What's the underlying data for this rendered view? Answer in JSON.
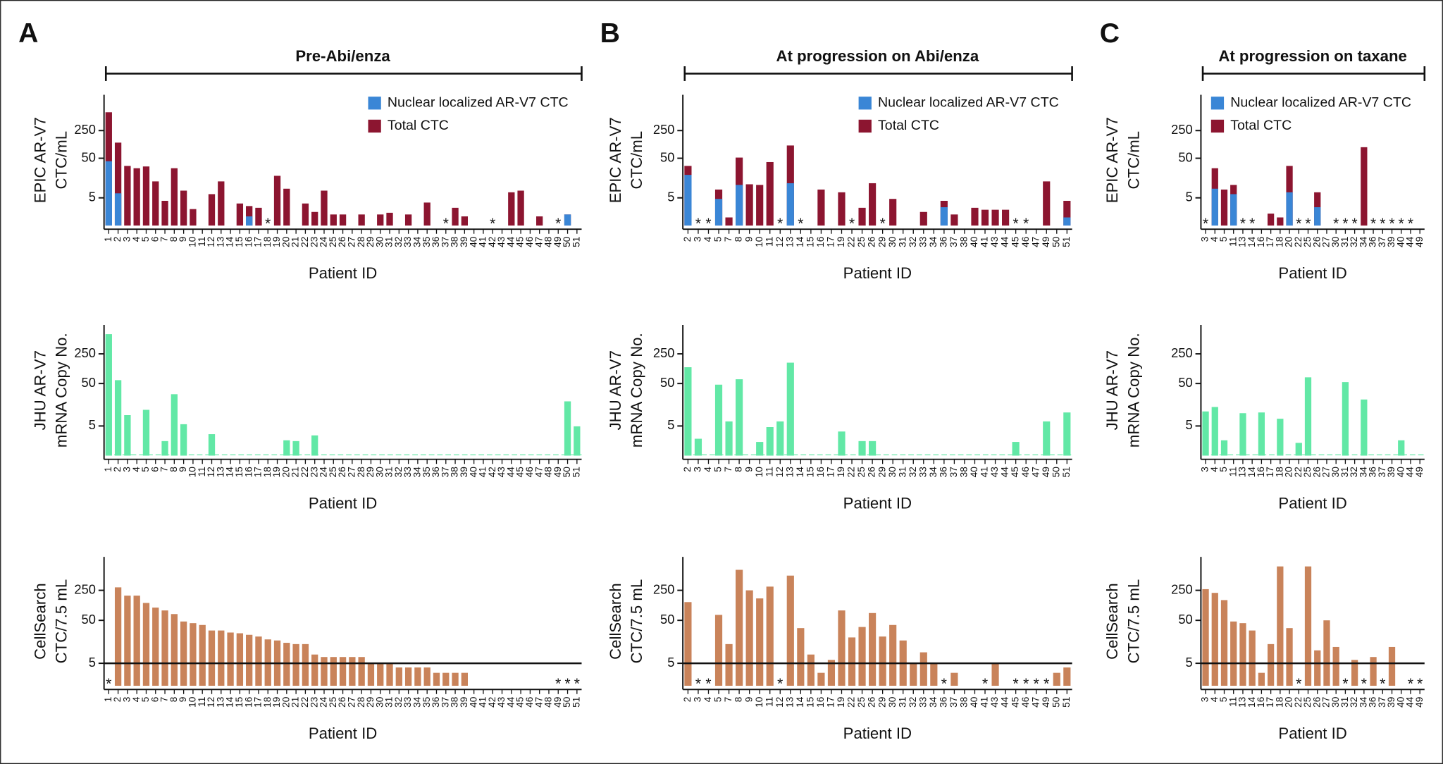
{
  "panels": [
    {
      "letter": "A",
      "title": "Pre-Abi/enza"
    },
    {
      "letter": "B",
      "title": "At progression on Abi/enza"
    },
    {
      "letter": "C",
      "title": "At progression on taxane"
    }
  ],
  "chart_data": [
    {
      "type": "bar",
      "barmode": "overlay",
      "ylabel": [
        "EPIC AR-V7",
        "CTC/mL"
      ],
      "xlabel": "Patient ID",
      "log_scale": true,
      "ylim": [
        1,
        2000
      ],
      "yticks": [
        5,
        50,
        250
      ],
      "legend": "upper right",
      "categories": [
        "1",
        "2",
        "3",
        "4",
        "5",
        "6",
        "7",
        "8",
        "9",
        "10",
        "11",
        "12",
        "13",
        "14",
        "15",
        "16",
        "17",
        "18",
        "19",
        "20",
        "21",
        "22",
        "23",
        "24",
        "25",
        "26",
        "27",
        "28",
        "29",
        "30",
        "31",
        "32",
        "33",
        "34",
        "35",
        "36",
        "37",
        "38",
        "39",
        "40",
        "41",
        "42",
        "43",
        "44",
        "45",
        "46",
        "47",
        "48",
        "49",
        "50",
        "51"
      ],
      "series": [
        {
          "name": "Nuclear localized AR-V7 CTC",
          "color": "#3a86d6",
          "values": [
            42,
            6.5,
            null,
            null,
            null,
            null,
            null,
            null,
            null,
            null,
            null,
            null,
            null,
            null,
            null,
            1.7,
            null,
            null,
            null,
            null,
            null,
            null,
            null,
            null,
            null,
            null,
            null,
            null,
            null,
            null,
            null,
            null,
            null,
            null,
            null,
            null,
            null,
            null,
            null,
            null,
            null,
            null,
            null,
            null,
            null,
            null,
            null,
            null,
            null,
            1.9,
            null
          ]
        },
        {
          "name": "Total CTC",
          "color": "#8c1530",
          "values": [
            725,
            124,
            32,
            28,
            31,
            13,
            4.2,
            28,
            7.6,
            2.6,
            null,
            6.2,
            13,
            null,
            3.6,
            3.1,
            2.8,
            null,
            18,
            8.5,
            null,
            3.6,
            2.2,
            7.6,
            1.9,
            1.9,
            null,
            1.9,
            null,
            1.9,
            2.1,
            null,
            1.9,
            null,
            3.8,
            null,
            null,
            2.8,
            1.7,
            null,
            null,
            null,
            null,
            6.9,
            7.6,
            null,
            1.7,
            null,
            null,
            1.9,
            null
          ]
        }
      ],
      "annotations": [
        {
          "text": "*",
          "x": "18"
        },
        {
          "text": "*",
          "x": "37"
        },
        {
          "text": "*",
          "x": "42"
        },
        {
          "text": "*",
          "x": "49"
        }
      ]
    },
    {
      "type": "bar",
      "ylabel": [
        "JHU AR-V7",
        "mRNA Copy No."
      ],
      "xlabel": "Patient ID",
      "log_scale": true,
      "ylim": [
        1,
        1200
      ],
      "yticks": [
        5,
        50,
        250
      ],
      "baseline_dashes": true,
      "color": "#62e8a6",
      "categories": [
        "1",
        "2",
        "3",
        "4",
        "5",
        "6",
        "7",
        "8",
        "9",
        "10",
        "11",
        "12",
        "13",
        "14",
        "15",
        "16",
        "17",
        "18",
        "19",
        "20",
        "21",
        "22",
        "23",
        "24",
        "25",
        "26",
        "27",
        "28",
        "29",
        "30",
        "31",
        "32",
        "33",
        "34",
        "35",
        "36",
        "37",
        "38",
        "39",
        "40",
        "41",
        "42",
        "43",
        "44",
        "45",
        "46",
        "47",
        "48",
        "49",
        "50",
        "51"
      ],
      "values": [
        728,
        60,
        9,
        null,
        12,
        null,
        2.2,
        28,
        5.5,
        null,
        null,
        3.2,
        null,
        null,
        null,
        null,
        null,
        null,
        null,
        2.3,
        2.2,
        null,
        3.0,
        null,
        null,
        null,
        null,
        null,
        null,
        null,
        null,
        null,
        null,
        null,
        null,
        null,
        null,
        null,
        null,
        null,
        null,
        null,
        null,
        null,
        null,
        null,
        null,
        null,
        null,
        19,
        4.9
      ]
    },
    {
      "type": "bar",
      "ylabel": [
        "CellSearch",
        "CTC/7.5 mL"
      ],
      "xlabel": "Patient ID",
      "log_scale": true,
      "ylim": [
        1.5,
        1500
      ],
      "yticks": [
        5,
        50,
        250
      ],
      "hline": 5,
      "color": "#c9835a",
      "categories": [
        "1",
        "2",
        "3",
        "4",
        "5",
        "6",
        "7",
        "8",
        "9",
        "10",
        "11",
        "12",
        "13",
        "14",
        "15",
        "16",
        "17",
        "18",
        "19",
        "20",
        "21",
        "22",
        "23",
        "24",
        "25",
        "26",
        "27",
        "28",
        "29",
        "30",
        "31",
        "32",
        "33",
        "34",
        "35",
        "36",
        "37",
        "38",
        "39",
        "40",
        "41",
        "42",
        "43",
        "44",
        "45",
        "46",
        "47",
        "48",
        "49",
        "50",
        "51"
      ],
      "values": [
        null,
        293,
        188,
        188,
        127,
        99,
        85,
        70,
        47,
        43,
        39,
        29,
        29,
        26,
        25,
        23,
        21,
        18,
        17,
        15,
        14,
        14,
        8,
        7,
        7,
        7,
        7,
        7,
        5,
        5,
        5,
        4,
        4,
        4,
        4,
        3,
        3,
        3,
        3,
        null,
        null,
        null,
        null,
        null,
        null,
        null,
        null,
        null,
        null,
        null,
        null
      ],
      "annotations": [
        {
          "text": "*",
          "x": "1"
        },
        {
          "text": "*",
          "x": "49"
        },
        {
          "text": "*",
          "x": "50"
        },
        {
          "text": "*",
          "x": "51"
        }
      ]
    },
    {
      "type": "bar",
      "barmode": "overlay",
      "ylabel": [
        "EPIC AR-V7",
        "CTC/mL"
      ],
      "xlabel": "Patient ID",
      "log_scale": true,
      "ylim": [
        1,
        2000
      ],
      "yticks": [
        5,
        50,
        250
      ],
      "legend": "upper right",
      "categories": [
        "2",
        "3",
        "4",
        "5",
        "7",
        "8",
        "9",
        "10",
        "11",
        "12",
        "13",
        "14",
        "15",
        "16",
        "17",
        "19",
        "22",
        "25",
        "26",
        "29",
        "30",
        "31",
        "32",
        "33",
        "34",
        "36",
        "37",
        "38",
        "40",
        "41",
        "43",
        "44",
        "45",
        "46",
        "47",
        "49",
        "50",
        "51"
      ],
      "series": [
        {
          "name": "Nuclear localized AR-V7 CTC",
          "color": "#3a86d6",
          "values": [
            19,
            null,
            null,
            4.7,
            null,
            10.6,
            null,
            null,
            null,
            null,
            11.7,
            null,
            null,
            null,
            null,
            null,
            null,
            null,
            null,
            null,
            null,
            null,
            null,
            null,
            null,
            2.9,
            null,
            null,
            null,
            null,
            null,
            null,
            null,
            null,
            null,
            null,
            null,
            1.6
          ]
        },
        {
          "name": "Total CTC",
          "color": "#8c1530",
          "values": [
            32,
            null,
            null,
            8.1,
            1.6,
            52,
            11,
            10.6,
            40,
            null,
            105,
            null,
            null,
            8.1,
            null,
            6.9,
            null,
            2.8,
            11.7,
            null,
            4.7,
            null,
            null,
            2.2,
            null,
            4.2,
            1.9,
            null,
            2.8,
            2.5,
            2.5,
            2.5,
            null,
            null,
            null,
            13,
            null,
            4.2
          ]
        }
      ],
      "annotations": [
        {
          "text": "*",
          "x": "3"
        },
        {
          "text": "*",
          "x": "4"
        },
        {
          "text": "*",
          "x": "12"
        },
        {
          "text": "*",
          "x": "14"
        },
        {
          "text": "*",
          "x": "22"
        },
        {
          "text": "*",
          "x": "29"
        },
        {
          "text": "*",
          "x": "45"
        },
        {
          "text": "*",
          "x": "46"
        }
      ]
    },
    {
      "type": "bar",
      "ylabel": [
        "JHU AR-V7",
        "mRNA Copy No."
      ],
      "xlabel": "Patient ID",
      "log_scale": true,
      "ylim": [
        1,
        1200
      ],
      "yticks": [
        5,
        50,
        250
      ],
      "baseline_dashes": true,
      "color": "#62e8a6",
      "categories": [
        "2",
        "3",
        "4",
        "5",
        "7",
        "8",
        "9",
        "10",
        "11",
        "12",
        "13",
        "14",
        "15",
        "16",
        "17",
        "19",
        "22",
        "25",
        "26",
        "29",
        "30",
        "31",
        "32",
        "33",
        "34",
        "36",
        "37",
        "38",
        "40",
        "41",
        "43",
        "44",
        "45",
        "46",
        "47",
        "49",
        "50",
        "51"
      ],
      "values": [
        121,
        2.5,
        null,
        47,
        6.4,
        63,
        null,
        2.1,
        4.7,
        6.4,
        155,
        null,
        null,
        null,
        null,
        3.7,
        null,
        2.2,
        2.2,
        null,
        null,
        null,
        null,
        null,
        null,
        null,
        null,
        null,
        null,
        null,
        null,
        null,
        2.1,
        null,
        null,
        6.4,
        null,
        10.4
      ]
    },
    {
      "type": "bar",
      "ylabel": [
        "CellSearch",
        "CTC/7.5 mL"
      ],
      "xlabel": "Patient ID",
      "log_scale": true,
      "ylim": [
        1.5,
        1500
      ],
      "yticks": [
        5,
        50,
        250
      ],
      "hline": 5,
      "color": "#c9835a",
      "categories": [
        "2",
        "3",
        "4",
        "5",
        "7",
        "8",
        "9",
        "10",
        "11",
        "12",
        "13",
        "14",
        "15",
        "16",
        "17",
        "19",
        "22",
        "25",
        "26",
        "29",
        "30",
        "31",
        "32",
        "33",
        "34",
        "36",
        "37",
        "38",
        "40",
        "41",
        "43",
        "44",
        "45",
        "46",
        "47",
        "49",
        "50",
        "51"
      ],
      "values": [
        133,
        null,
        null,
        67,
        14,
        750,
        250,
        162,
        305,
        null,
        550,
        33,
        8,
        3,
        6,
        85,
        20,
        35,
        74,
        21,
        39,
        17,
        5,
        9,
        5,
        null,
        3,
        null,
        null,
        null,
        5,
        null,
        null,
        null,
        null,
        null,
        3,
        4
      ],
      "annotations": [
        {
          "text": "*",
          "x": "3"
        },
        {
          "text": "*",
          "x": "4"
        },
        {
          "text": "*",
          "x": "12"
        },
        {
          "text": "*",
          "x": "36"
        },
        {
          "text": "*",
          "x": "41"
        },
        {
          "text": "*",
          "x": "45"
        },
        {
          "text": "*",
          "x": "46"
        },
        {
          "text": "*",
          "x": "47"
        },
        {
          "text": "*",
          "x": "49"
        }
      ]
    },
    {
      "type": "bar",
      "barmode": "overlay",
      "ylabel": [
        "EPIC AR-V7",
        "CTC/mL"
      ],
      "xlabel": "Patient ID",
      "log_scale": true,
      "ylim": [
        1,
        2000
      ],
      "yticks": [
        5,
        50,
        250
      ],
      "legend": "upper right",
      "categories": [
        "3",
        "4",
        "5",
        "11",
        "13",
        "14",
        "16",
        "17",
        "18",
        "20",
        "22",
        "25",
        "26",
        "27",
        "30",
        "31",
        "32",
        "34",
        "36",
        "37",
        "39",
        "40",
        "44",
        "49"
      ],
      "series": [
        {
          "name": "Nuclear localized AR-V7 CTC",
          "color": "#3a86d6",
          "values": [
            null,
            8.5,
            null,
            6.2,
            null,
            null,
            null,
            null,
            null,
            6.9,
            null,
            null,
            2.9,
            null,
            null,
            null,
            null,
            null,
            null,
            null,
            null,
            null,
            null,
            null
          ]
        },
        {
          "name": "Total CTC",
          "color": "#8c1530",
          "values": [
            null,
            28,
            8.1,
            10.6,
            null,
            null,
            null,
            2.0,
            1.6,
            32,
            null,
            null,
            6.9,
            null,
            null,
            null,
            null,
            95,
            null,
            null,
            null,
            null,
            null,
            null
          ]
        }
      ],
      "annotations": [
        {
          "text": "*",
          "x": "3"
        },
        {
          "text": "*",
          "x": "13"
        },
        {
          "text": "*",
          "x": "14"
        },
        {
          "text": "*",
          "x": "22"
        },
        {
          "text": "*",
          "x": "25"
        },
        {
          "text": "*",
          "x": "30"
        },
        {
          "text": "*",
          "x": "31"
        },
        {
          "text": "*",
          "x": "32"
        },
        {
          "text": "*",
          "x": "36"
        },
        {
          "text": "*",
          "x": "37"
        },
        {
          "text": "*",
          "x": "39"
        },
        {
          "text": "*",
          "x": "40"
        },
        {
          "text": "*",
          "x": "44"
        }
      ]
    },
    {
      "type": "bar",
      "ylabel": [
        "JHU AR-V7",
        "mRNA Copy No."
      ],
      "xlabel": "Patient ID",
      "log_scale": true,
      "ylim": [
        1,
        1200
      ],
      "yticks": [
        5,
        50,
        250
      ],
      "baseline_dashes": true,
      "color": "#62e8a6",
      "categories": [
        "3",
        "4",
        "5",
        "11",
        "13",
        "14",
        "16",
        "17",
        "18",
        "20",
        "22",
        "25",
        "26",
        "27",
        "30",
        "31",
        "32",
        "34",
        "36",
        "37",
        "39",
        "40",
        "44",
        "49"
      ],
      "values": [
        11,
        14,
        2.3,
        null,
        10,
        null,
        10.4,
        null,
        7.4,
        null,
        2.0,
        70,
        null,
        null,
        null,
        54,
        null,
        21,
        null,
        null,
        null,
        2.3,
        null,
        null
      ]
    },
    {
      "type": "bar",
      "ylabel": [
        "CellSearch",
        "CTC/7.5 mL"
      ],
      "xlabel": "Patient ID",
      "log_scale": true,
      "ylim": [
        1.5,
        1500
      ],
      "yticks": [
        5,
        50,
        250
      ],
      "hline": 5,
      "color": "#c9835a",
      "categories": [
        "3",
        "4",
        "5",
        "11",
        "13",
        "14",
        "16",
        "17",
        "18",
        "20",
        "22",
        "25",
        "26",
        "27",
        "30",
        "31",
        "32",
        "34",
        "36",
        "37",
        "39",
        "40",
        "44",
        "49"
      ],
      "values": [
        266,
        218,
        148,
        47,
        43,
        29,
        3,
        14,
        900,
        33,
        null,
        900,
        10,
        50,
        12,
        null,
        6,
        null,
        7,
        null,
        12,
        null,
        null,
        null
      ],
      "annotations": [
        {
          "text": "*",
          "x": "22"
        },
        {
          "text": "*",
          "x": "31"
        },
        {
          "text": "*",
          "x": "34"
        },
        {
          "text": "*",
          "x": "37"
        },
        {
          "text": "*",
          "x": "44"
        },
        {
          "text": "*",
          "x": "49"
        }
      ]
    }
  ]
}
